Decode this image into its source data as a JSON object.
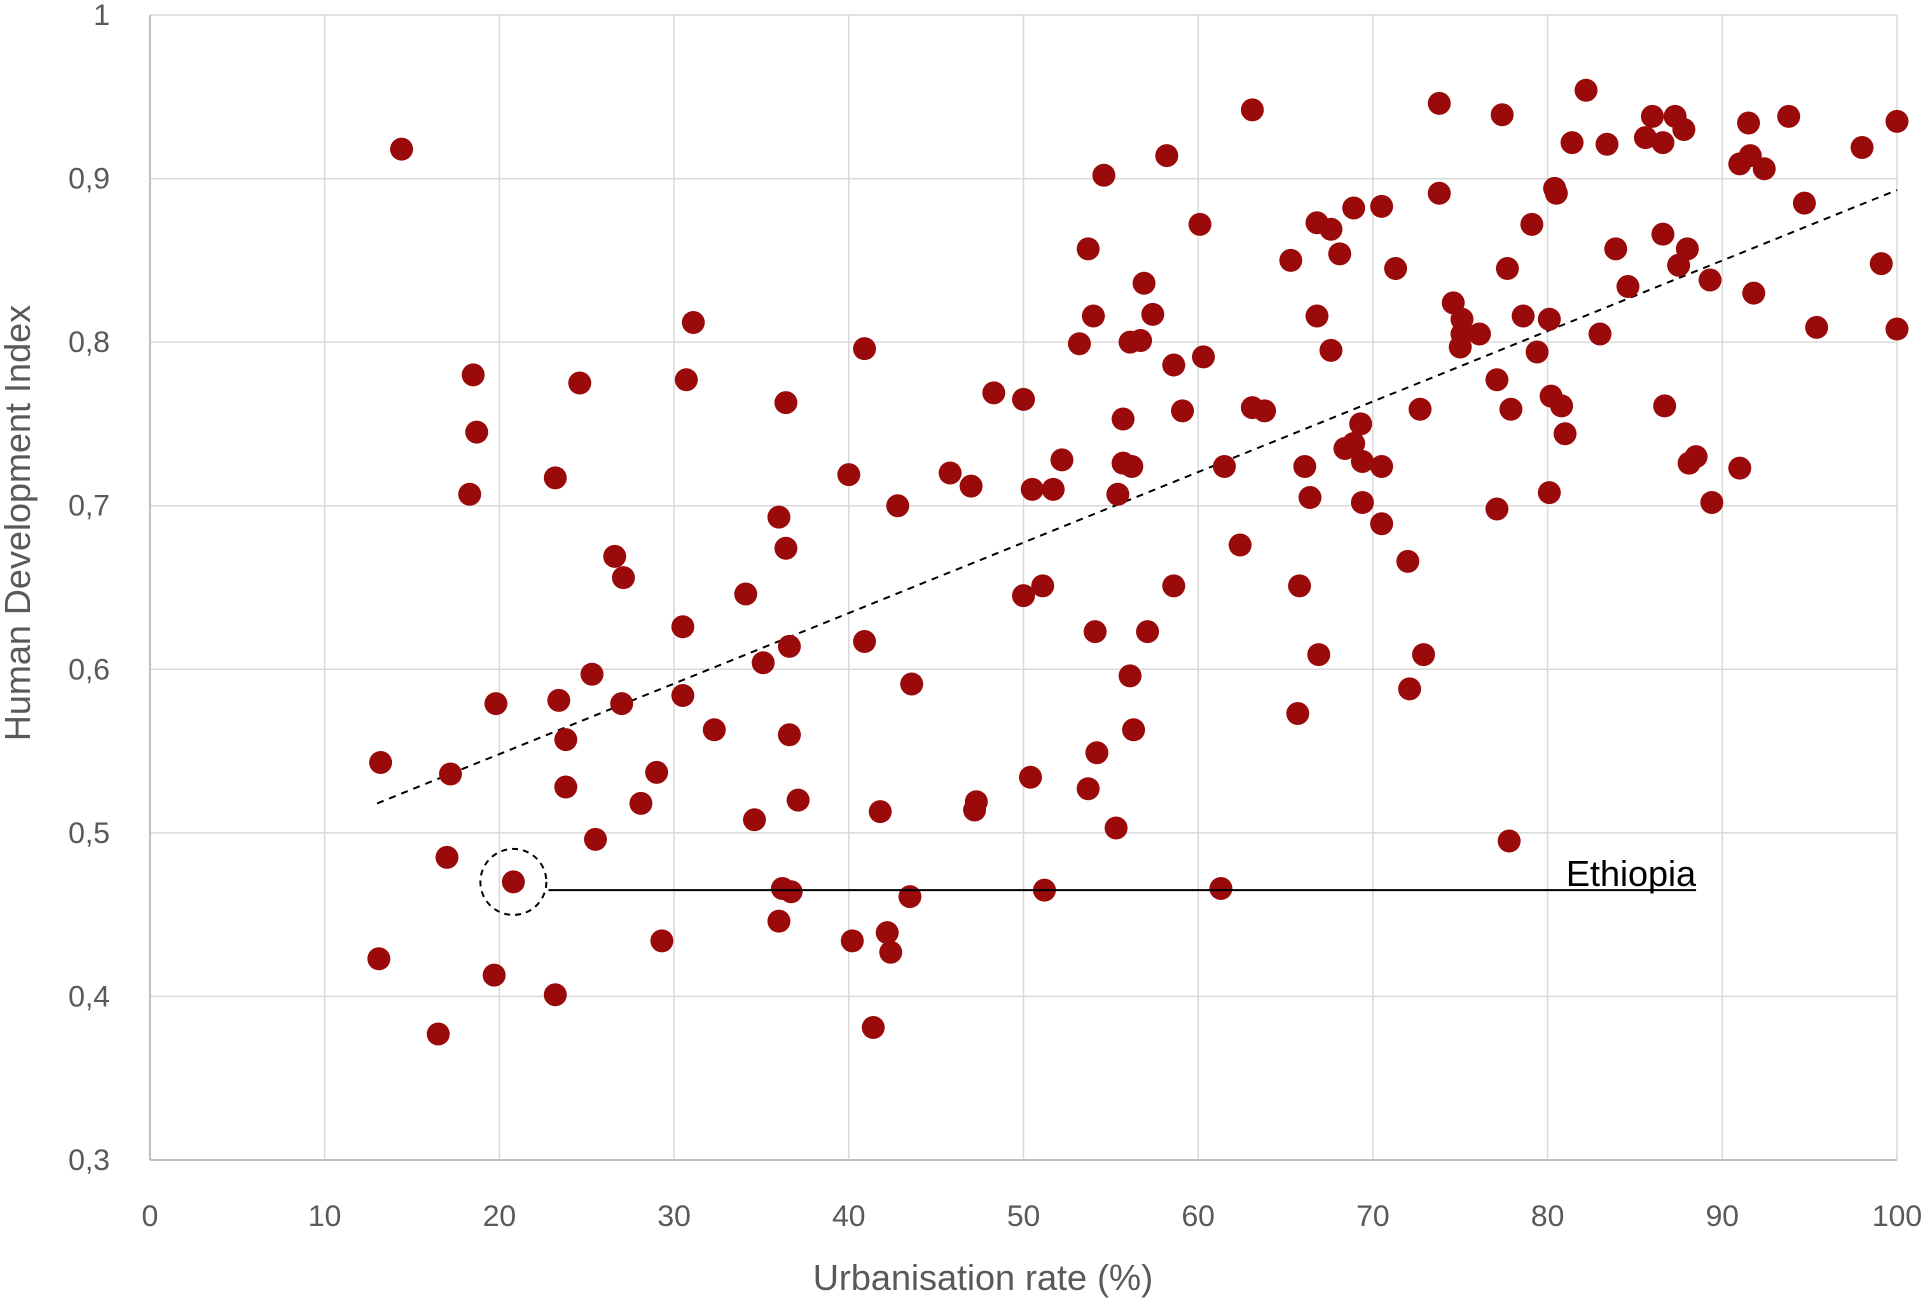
{
  "chart_data": {
    "type": "scatter",
    "title": "",
    "xlabel": "Urbanisation rate (%)",
    "ylabel": "Human Development Index",
    "xlim": [
      0,
      100
    ],
    "ylim": [
      0.3,
      1
    ],
    "x_ticks": [
      0,
      10,
      20,
      30,
      40,
      50,
      60,
      70,
      80,
      90,
      100
    ],
    "y_ticks": [
      0.3,
      0.4,
      0.5,
      0.6,
      0.7,
      0.8,
      0.9,
      1.0
    ],
    "x_tick_labels": [
      "0",
      "10",
      "20",
      "30",
      "40",
      "50",
      "60",
      "70",
      "80",
      "90",
      "100"
    ],
    "y_tick_labels": [
      "0,3",
      "0,4",
      "0,5",
      "0,6",
      "0,7",
      "0,8",
      "0,9",
      "1"
    ],
    "grid": true,
    "marker_color": "#9b0a0a",
    "trendline": {
      "style": "dashed",
      "x": [
        13,
        100
      ],
      "y": [
        0.518,
        0.893
      ]
    },
    "annotation": {
      "label": "Ethiopia",
      "x": 20.8,
      "y": 0.47,
      "line_y": 0.465,
      "line_x_end": 88.5
    },
    "series": [
      {
        "points": [
          [
            14.4,
            0.918
          ],
          [
            13.2,
            0.543
          ],
          [
            13.1,
            0.423
          ],
          [
            17.2,
            0.536
          ],
          [
            16.5,
            0.377
          ],
          [
            17,
            0.485
          ],
          [
            18.5,
            0.78
          ],
          [
            18.7,
            0.745
          ],
          [
            18.3,
            0.707
          ],
          [
            19.8,
            0.579
          ],
          [
            19.7,
            0.413
          ],
          [
            20.8,
            0.47
          ],
          [
            23.2,
            0.717
          ],
          [
            23.4,
            0.581
          ],
          [
            23.8,
            0.557
          ],
          [
            23.8,
            0.528
          ],
          [
            23.2,
            0.401
          ],
          [
            24.6,
            0.775
          ],
          [
            25.3,
            0.597
          ],
          [
            25.5,
            0.496
          ],
          [
            26.6,
            0.669
          ],
          [
            27.1,
            0.656
          ],
          [
            27,
            0.579
          ],
          [
            28.1,
            0.518
          ],
          [
            29,
            0.537
          ],
          [
            29.3,
            0.434
          ],
          [
            30.5,
            0.626
          ],
          [
            30.5,
            0.584
          ],
          [
            30.7,
            0.777
          ],
          [
            31.1,
            0.812
          ],
          [
            32.3,
            0.563
          ],
          [
            34.1,
            0.646
          ],
          [
            34.6,
            0.508
          ],
          [
            35.1,
            0.604
          ],
          [
            36,
            0.693
          ],
          [
            36.4,
            0.763
          ],
          [
            36.4,
            0.674
          ],
          [
            36.6,
            0.614
          ],
          [
            36.6,
            0.56
          ],
          [
            37.1,
            0.52
          ],
          [
            36.2,
            0.466
          ],
          [
            36.7,
            0.464
          ],
          [
            36,
            0.446
          ],
          [
            40,
            0.719
          ],
          [
            40.9,
            0.796
          ],
          [
            40.9,
            0.617
          ],
          [
            41.8,
            0.513
          ],
          [
            42.2,
            0.439
          ],
          [
            42.4,
            0.427
          ],
          [
            41.4,
            0.381
          ],
          [
            40.2,
            0.434
          ],
          [
            42.8,
            0.7
          ],
          [
            43.6,
            0.591
          ],
          [
            43.5,
            0.461
          ],
          [
            45.8,
            0.72
          ],
          [
            47,
            0.712
          ],
          [
            47.3,
            0.519
          ],
          [
            47.2,
            0.514
          ],
          [
            48.3,
            0.769
          ],
          [
            50,
            0.765
          ],
          [
            50.5,
            0.71
          ],
          [
            51.7,
            0.71
          ],
          [
            52.2,
            0.728
          ],
          [
            50,
            0.645
          ],
          [
            51.1,
            0.651
          ],
          [
            50.4,
            0.534
          ],
          [
            51.2,
            0.465
          ],
          [
            53.2,
            0.799
          ],
          [
            53.7,
            0.857
          ],
          [
            54,
            0.816
          ],
          [
            54.6,
            0.902
          ],
          [
            54.1,
            0.623
          ],
          [
            54.2,
            0.549
          ],
          [
            53.7,
            0.527
          ],
          [
            55.3,
            0.503
          ],
          [
            55.7,
            0.753
          ],
          [
            55.7,
            0.726
          ],
          [
            56.2,
            0.724
          ],
          [
            55.4,
            0.707
          ],
          [
            56.1,
            0.8
          ],
          [
            56.7,
            0.801
          ],
          [
            56.9,
            0.836
          ],
          [
            57.4,
            0.817
          ],
          [
            58.2,
            0.914
          ],
          [
            58.6,
            0.786
          ],
          [
            59.1,
            0.758
          ],
          [
            58.6,
            0.651
          ],
          [
            57.1,
            0.623
          ],
          [
            56.1,
            0.596
          ],
          [
            56.3,
            0.563
          ],
          [
            60.1,
            0.872
          ],
          [
            60.3,
            0.791
          ],
          [
            61.5,
            0.724
          ],
          [
            62.4,
            0.676
          ],
          [
            63.1,
            0.942
          ],
          [
            63.1,
            0.76
          ],
          [
            63.8,
            0.758
          ],
          [
            61.3,
            0.466
          ],
          [
            65.3,
            0.85
          ],
          [
            65.7,
            0.573
          ],
          [
            65.8,
            0.651
          ],
          [
            66.1,
            0.724
          ],
          [
            66.4,
            0.705
          ],
          [
            66.8,
            0.873
          ],
          [
            66.8,
            0.816
          ],
          [
            66.9,
            0.609
          ],
          [
            67.6,
            0.869
          ],
          [
            67.6,
            0.795
          ],
          [
            68.1,
            0.854
          ],
          [
            68.4,
            0.735
          ],
          [
            68.9,
            0.882
          ],
          [
            68.9,
            0.738
          ],
          [
            69.3,
            0.75
          ],
          [
            69.4,
            0.727
          ],
          [
            69.4,
            0.702
          ],
          [
            70.5,
            0.883
          ],
          [
            70.5,
            0.724
          ],
          [
            70.5,
            0.689
          ],
          [
            71.3,
            0.845
          ],
          [
            72,
            0.666
          ],
          [
            72.1,
            0.588
          ],
          [
            72.7,
            0.759
          ],
          [
            72.9,
            0.609
          ],
          [
            73.8,
            0.946
          ],
          [
            73.8,
            0.891
          ],
          [
            74.6,
            0.824
          ],
          [
            75.1,
            0.814
          ],
          [
            75,
            0.797
          ],
          [
            75.1,
            0.805
          ],
          [
            76.1,
            0.805
          ],
          [
            77.1,
            0.777
          ],
          [
            77.4,
            0.939
          ],
          [
            77.7,
            0.845
          ],
          [
            77.9,
            0.759
          ],
          [
            77.1,
            0.698
          ],
          [
            77.8,
            0.495
          ],
          [
            78.6,
            0.816
          ],
          [
            79.1,
            0.872
          ],
          [
            79.4,
            0.794
          ],
          [
            80.1,
            0.814
          ],
          [
            80.2,
            0.767
          ],
          [
            80.1,
            0.708
          ],
          [
            80.4,
            0.894
          ],
          [
            80.5,
            0.891
          ],
          [
            80.8,
            0.761
          ],
          [
            81,
            0.744
          ],
          [
            81.4,
            0.922
          ],
          [
            82.2,
            0.954
          ],
          [
            83,
            0.805
          ],
          [
            83.4,
            0.921
          ],
          [
            83.9,
            0.857
          ],
          [
            84.6,
            0.834
          ],
          [
            85.6,
            0.925
          ],
          [
            86,
            0.938
          ],
          [
            86.6,
            0.922
          ],
          [
            86.6,
            0.866
          ],
          [
            86.7,
            0.761
          ],
          [
            87.3,
            0.938
          ],
          [
            87.5,
            0.847
          ],
          [
            87.8,
            0.93
          ],
          [
            88,
            0.857
          ],
          [
            88.1,
            0.726
          ],
          [
            88.5,
            0.73
          ],
          [
            89.3,
            0.838
          ],
          [
            89.4,
            0.702
          ],
          [
            91,
            0.909
          ],
          [
            91,
            0.723
          ],
          [
            91.5,
            0.934
          ],
          [
            91.6,
            0.914
          ],
          [
            91.8,
            0.83
          ],
          [
            92.4,
            0.906
          ],
          [
            93.8,
            0.938
          ],
          [
            94.7,
            0.885
          ],
          [
            95.4,
            0.809
          ],
          [
            98,
            0.919
          ],
          [
            99.1,
            0.848
          ],
          [
            100,
            0.935
          ],
          [
            100,
            0.808
          ]
        ]
      }
    ]
  }
}
